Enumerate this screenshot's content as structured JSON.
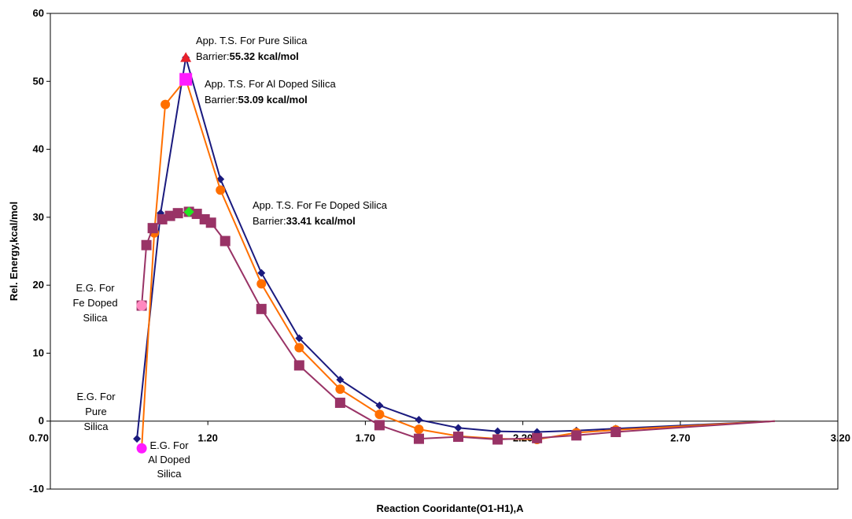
{
  "chart_data": {
    "type": "line",
    "xlabel": "Reaction Cooridante(O1-H1),A",
    "ylabel": "Rel. Energy,kcal/mol",
    "xlim": [
      0.7,
      3.2
    ],
    "ylim": [
      -10,
      60
    ],
    "x_ticks": [
      "0.70",
      "1.20",
      "1.70",
      "2.20",
      "2.70",
      "3.20"
    ],
    "y_ticks": [
      "-10",
      "0",
      "10",
      "20",
      "30",
      "40",
      "50",
      "60"
    ],
    "grid": false,
    "legend": "none",
    "series": [
      {
        "key": "pure",
        "color": "#1a1a7e",
        "marker": "diamond",
        "points": [
          [
            0.975,
            -2.6
          ],
          [
            1.05,
            30.6
          ],
          [
            1.13,
            53.5
          ],
          [
            1.24,
            35.6
          ],
          [
            1.37,
            21.8
          ],
          [
            1.49,
            12.2
          ],
          [
            1.62,
            6.1
          ],
          [
            1.745,
            2.3
          ],
          [
            1.87,
            0.2
          ],
          [
            1.995,
            -1.0
          ],
          [
            2.12,
            -1.5
          ],
          [
            2.245,
            -1.6
          ],
          [
            2.37,
            -1.4
          ],
          [
            2.495,
            -1.1
          ],
          [
            3.0,
            0.0
          ]
        ]
      },
      {
        "key": "al",
        "color": "#ff6f00",
        "marker": "circle",
        "points": [
          [
            0.99,
            -4.0
          ],
          [
            1.03,
            27.7
          ],
          [
            1.065,
            46.6
          ],
          [
            1.13,
            50.3
          ],
          [
            1.24,
            34.0
          ],
          [
            1.37,
            20.2
          ],
          [
            1.49,
            10.8
          ],
          [
            1.62,
            4.7
          ],
          [
            1.745,
            1.0
          ],
          [
            1.87,
            -1.2
          ],
          [
            1.995,
            -2.2
          ],
          [
            2.12,
            -2.6
          ],
          [
            2.245,
            -2.7
          ],
          [
            2.37,
            -1.7
          ],
          [
            2.495,
            -1.3
          ],
          [
            3.0,
            0.0
          ]
        ]
      },
      {
        "key": "fe",
        "color": "#993366",
        "marker": "square",
        "points": [
          [
            0.99,
            17.0
          ],
          [
            1.005,
            25.9
          ],
          [
            1.025,
            28.4
          ],
          [
            1.055,
            29.7
          ],
          [
            1.08,
            30.2
          ],
          [
            1.105,
            30.6
          ],
          [
            1.14,
            30.8
          ],
          [
            1.165,
            30.5
          ],
          [
            1.19,
            29.7
          ],
          [
            1.21,
            29.2
          ],
          [
            1.255,
            26.5
          ],
          [
            1.37,
            16.5
          ],
          [
            1.49,
            8.2
          ],
          [
            1.62,
            2.7
          ],
          [
            1.745,
            -0.6
          ],
          [
            1.87,
            -2.6
          ],
          [
            1.995,
            -2.3
          ],
          [
            2.12,
            -2.7
          ],
          [
            2.245,
            -2.5
          ],
          [
            2.37,
            -2.1
          ],
          [
            2.495,
            -1.6
          ],
          [
            3.0,
            0.0
          ]
        ]
      }
    ],
    "highlights": [
      {
        "key": "pure-ts",
        "x": 1.13,
        "y": 53.5,
        "shape": "triangle",
        "color": "#e8202a"
      },
      {
        "key": "al-ts",
        "x": 1.13,
        "y": 50.3,
        "shape": "square",
        "color": "#ff1aff"
      },
      {
        "key": "fe-ts",
        "x": 1.14,
        "y": 30.8,
        "shape": "diamond",
        "color": "#22e622"
      },
      {
        "key": "al-eg",
        "x": 0.99,
        "y": -4.0,
        "shape": "circle",
        "color": "#ff1aff"
      },
      {
        "key": "fe-eg",
        "x": 0.99,
        "y": 17.0,
        "shape": "circle",
        "color": "#ff88c0"
      }
    ],
    "annotations": {
      "ts_pure": {
        "line1": "App. T.S. For Pure Silica",
        "prefix": "Barrier:",
        "value": "55.32 kcal/mol"
      },
      "ts_al": {
        "line1": "App. T.S. For Al Doped Silica",
        "prefix": "Barrier:",
        "value": "53.09 kcal/mol"
      },
      "ts_fe": {
        "line1": "App. T.S. For Fe Doped Silica",
        "prefix": "Barrier:",
        "value": "33.41 kcal/mol"
      },
      "eg_fe": {
        "lines": [
          "E.G. For",
          "Fe Doped",
          "Silica"
        ]
      },
      "eg_pure": {
        "lines": [
          "E.G. For",
          "Pure",
          "Silica"
        ]
      },
      "eg_al": {
        "lines": [
          "E.G. For",
          "Al Doped",
          "Silica"
        ]
      }
    }
  }
}
